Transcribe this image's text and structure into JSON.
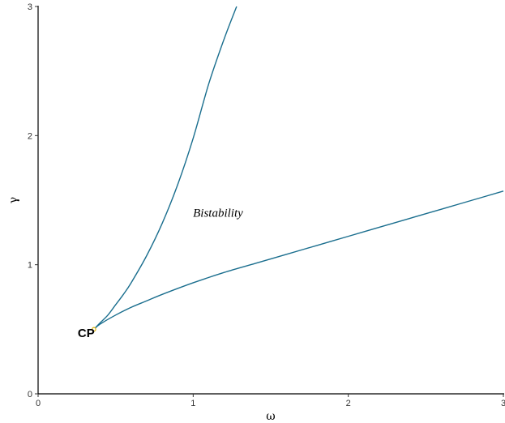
{
  "chart_data": {
    "type": "line",
    "xlabel": "ω",
    "ylabel": "γ",
    "xlim": [
      0,
      3
    ],
    "ylim": [
      0,
      3
    ],
    "x_ticks": [
      "0",
      "1",
      "2",
      "3"
    ],
    "y_ticks": [
      "0",
      "1",
      "2",
      "3"
    ],
    "grid": false,
    "line_color": "#1a6e8e",
    "point_color": "#e0b400",
    "series": [
      {
        "x": [
          0.36,
          0.4,
          0.45,
          0.5,
          0.55,
          0.6,
          0.7,
          0.8,
          0.9,
          1.0,
          1.1,
          1.2,
          1.28
        ],
        "y": [
          0.5,
          0.55,
          0.61,
          0.69,
          0.77,
          0.86,
          1.07,
          1.32,
          1.62,
          1.98,
          2.4,
          2.75,
          3.0
        ]
      },
      {
        "x": [
          0.36,
          0.4,
          0.5,
          0.6,
          0.7,
          0.8,
          1.0,
          1.2,
          1.4,
          1.6,
          1.8,
          2.0,
          2.2,
          2.4,
          2.6,
          2.8,
          3.0
        ],
        "y": [
          0.5,
          0.54,
          0.61,
          0.67,
          0.72,
          0.77,
          0.86,
          0.94,
          1.01,
          1.08,
          1.15,
          1.22,
          1.29,
          1.36,
          1.43,
          1.5,
          1.57
        ]
      }
    ],
    "annotations": [
      {
        "text": "Bistability",
        "x": 1.16,
        "y": 1.37
      },
      {
        "text": "CP",
        "x": 0.31,
        "y": 0.44
      }
    ],
    "points": [
      {
        "x": 0.36,
        "y": 0.5
      }
    ]
  }
}
